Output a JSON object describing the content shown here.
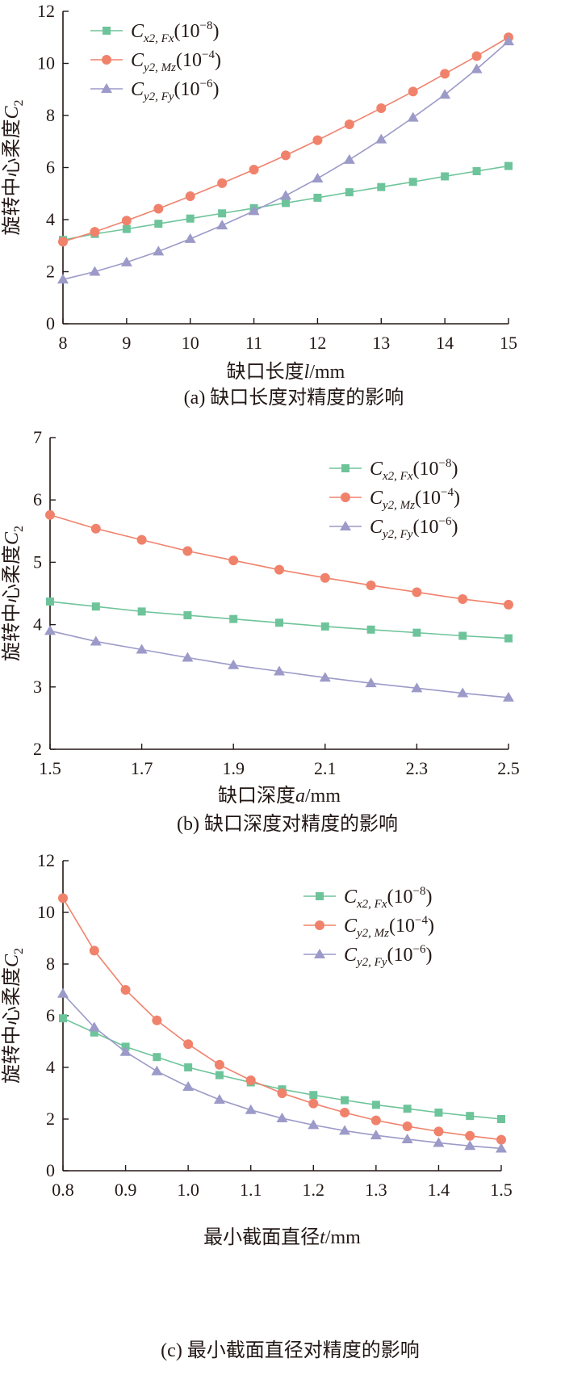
{
  "colors": {
    "fx": "#6ec49a",
    "mz": "#f0826c",
    "fy": "#9c9ac8",
    "axis": "#231815"
  },
  "legend_labels": [
    {
      "sym": "C",
      "sub": "x2, Fx",
      "unit": "(10",
      "exp": "−8",
      "close": ")"
    },
    {
      "sym": "C",
      "sub": "y2, Mz",
      "unit": "(10",
      "exp": "−4",
      "close": ")"
    },
    {
      "sym": "C",
      "sub": "y2, Fy",
      "unit": "(10",
      "exp": "−6",
      "close": ")"
    }
  ],
  "chart_data": [
    {
      "type": "line",
      "caption": "(a)  缺口长度对精度的影响",
      "ylabel": "旋转中心柔度",
      "ylabel_sym": "C",
      "ylabel_sub": "2",
      "xlabel": "缺口长度",
      "xlabel_sym": "l",
      "xlabel_unit": "/mm",
      "xlim": [
        8,
        15
      ],
      "ylim": [
        0,
        12
      ],
      "xticks": [
        8,
        9,
        10,
        11,
        12,
        13,
        14,
        15
      ],
      "yticks": [
        0,
        2,
        4,
        6,
        8,
        10,
        12
      ],
      "tick_decimals": 0,
      "legend_position": "top-left",
      "x": [
        8,
        8.5,
        9,
        9.5,
        10,
        10.5,
        11,
        11.5,
        12,
        12.5,
        13,
        13.5,
        14,
        14.5,
        15
      ],
      "series": [
        {
          "key": "fx",
          "marker": "square",
          "values": [
            3.22,
            3.45,
            3.64,
            3.84,
            4.04,
            4.24,
            4.44,
            4.64,
            4.84,
            5.05,
            5.25,
            5.45,
            5.66,
            5.86,
            6.06
          ]
        },
        {
          "key": "mz",
          "marker": "circle",
          "values": [
            3.15,
            3.53,
            3.96,
            4.42,
            4.9,
            5.4,
            5.92,
            6.47,
            7.05,
            7.66,
            8.28,
            8.92,
            9.6,
            10.28,
            11.0
          ]
        },
        {
          "key": "fy",
          "marker": "triangle",
          "values": [
            1.7,
            2.0,
            2.36,
            2.78,
            3.26,
            3.78,
            4.33,
            4.92,
            5.58,
            6.3,
            7.08,
            7.92,
            8.8,
            9.78,
            10.85
          ]
        }
      ]
    },
    {
      "type": "line",
      "caption": "(b)  缺口深度对精度的影响",
      "ylabel": "旋转中心柔度",
      "ylabel_sym": "C",
      "ylabel_sub": "2",
      "xlabel": "缺口深度",
      "xlabel_sym": "a",
      "xlabel_unit": "/mm",
      "xlim": [
        1.5,
        2.5
      ],
      "ylim": [
        2,
        7
      ],
      "xticks": [
        1.5,
        1.7,
        1.9,
        2.1,
        2.3,
        2.5
      ],
      "yticks": [
        2,
        3,
        4,
        5,
        6,
        7
      ],
      "tick_decimals": [
        1,
        0
      ],
      "legend_position": "top-right",
      "x": [
        1.5,
        1.6,
        1.7,
        1.8,
        1.9,
        2.0,
        2.1,
        2.2,
        2.3,
        2.4,
        2.5
      ],
      "series": [
        {
          "key": "fx",
          "marker": "square",
          "values": [
            4.37,
            4.29,
            4.21,
            4.15,
            4.09,
            4.03,
            3.97,
            3.92,
            3.87,
            3.82,
            3.78
          ]
        },
        {
          "key": "mz",
          "marker": "circle",
          "values": [
            5.76,
            5.54,
            5.36,
            5.18,
            5.03,
            4.88,
            4.75,
            4.63,
            4.52,
            4.41,
            4.32
          ]
        },
        {
          "key": "fy",
          "marker": "triangle",
          "values": [
            3.9,
            3.73,
            3.6,
            3.47,
            3.35,
            3.25,
            3.15,
            3.06,
            2.98,
            2.9,
            2.83
          ]
        }
      ]
    },
    {
      "type": "line",
      "caption": "(c)  最小截面直径对精度的影响",
      "ylabel": "旋转中心柔度",
      "ylabel_sym": "C",
      "ylabel_sub": "2",
      "xlabel": "最小截面直径",
      "xlabel_sym": "t",
      "xlabel_unit": "/mm",
      "xlim": [
        0.8,
        1.5
      ],
      "ylim": [
        0,
        12
      ],
      "xticks": [
        0.8,
        0.9,
        1.0,
        1.1,
        1.2,
        1.3,
        1.4,
        1.5
      ],
      "yticks": [
        0,
        2,
        4,
        6,
        8,
        10,
        12
      ],
      "tick_decimals": [
        1,
        0
      ],
      "legend_position": "top-right",
      "x": [
        0.8,
        0.85,
        0.9,
        0.95,
        1.0,
        1.05,
        1.1,
        1.15,
        1.2,
        1.25,
        1.3,
        1.35,
        1.4,
        1.45,
        1.5
      ],
      "series": [
        {
          "key": "fx",
          "marker": "square",
          "values": [
            5.9,
            5.35,
            4.8,
            4.4,
            4.0,
            3.7,
            3.42,
            3.15,
            2.93,
            2.73,
            2.55,
            2.4,
            2.25,
            2.12,
            2.0
          ]
        },
        {
          "key": "mz",
          "marker": "circle",
          "values": [
            10.55,
            8.52,
            7.0,
            5.82,
            4.9,
            4.1,
            3.5,
            3.0,
            2.6,
            2.25,
            1.95,
            1.72,
            1.52,
            1.35,
            1.2
          ]
        },
        {
          "key": "fy",
          "marker": "triangle",
          "values": [
            6.85,
            5.55,
            4.6,
            3.85,
            3.25,
            2.75,
            2.35,
            2.03,
            1.77,
            1.55,
            1.37,
            1.22,
            1.08,
            0.96,
            0.86
          ]
        }
      ]
    }
  ]
}
